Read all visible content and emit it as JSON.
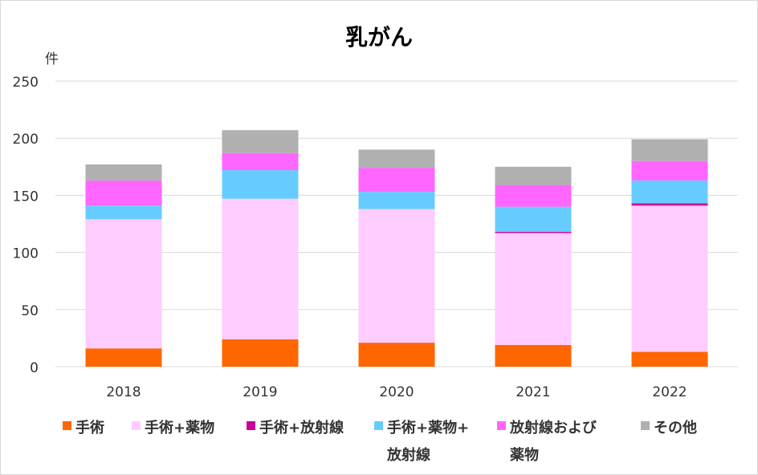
{
  "chart_data": {
    "type": "bar",
    "stacked": true,
    "title": "乳がん",
    "ylabel": "件",
    "xlabel": "",
    "ylim": [
      0,
      250
    ],
    "yticks": [
      0,
      50,
      100,
      150,
      200,
      250
    ],
    "grid": true,
    "legend_position": "bottom",
    "categories": [
      "2018",
      "2019",
      "2020",
      "2021",
      "2022"
    ],
    "series": [
      {
        "name": "手術",
        "color": "#ff6600",
        "values": [
          16,
          24,
          21,
          19,
          13
        ]
      },
      {
        "name": "手術+薬物",
        "color": "#ffccff",
        "values": [
          113,
          123,
          117,
          98,
          128
        ]
      },
      {
        "name": "手術+放射線",
        "color": "#cc0099",
        "values": [
          0,
          0,
          0,
          1,
          2
        ]
      },
      {
        "name": "手術+薬物+放射線",
        "color": "#66ccff",
        "values": [
          12,
          25,
          15,
          22,
          20
        ]
      },
      {
        "name": "放射線および薬物",
        "color": "#ff66ff",
        "values": [
          22,
          15,
          21,
          19,
          17
        ]
      },
      {
        "name": "その他",
        "color": "#b0b0b0",
        "values": [
          14,
          20,
          16,
          16,
          19
        ]
      }
    ],
    "legend": [
      {
        "lines": [
          "手術"
        ]
      },
      {
        "lines": [
          "手術+薬物"
        ]
      },
      {
        "lines": [
          "手術+放射線"
        ]
      },
      {
        "lines": [
          "手術+薬物+",
          "放射線"
        ]
      },
      {
        "lines": [
          "放射線および",
          "薬物"
        ]
      },
      {
        "lines": [
          "その他"
        ]
      }
    ]
  }
}
